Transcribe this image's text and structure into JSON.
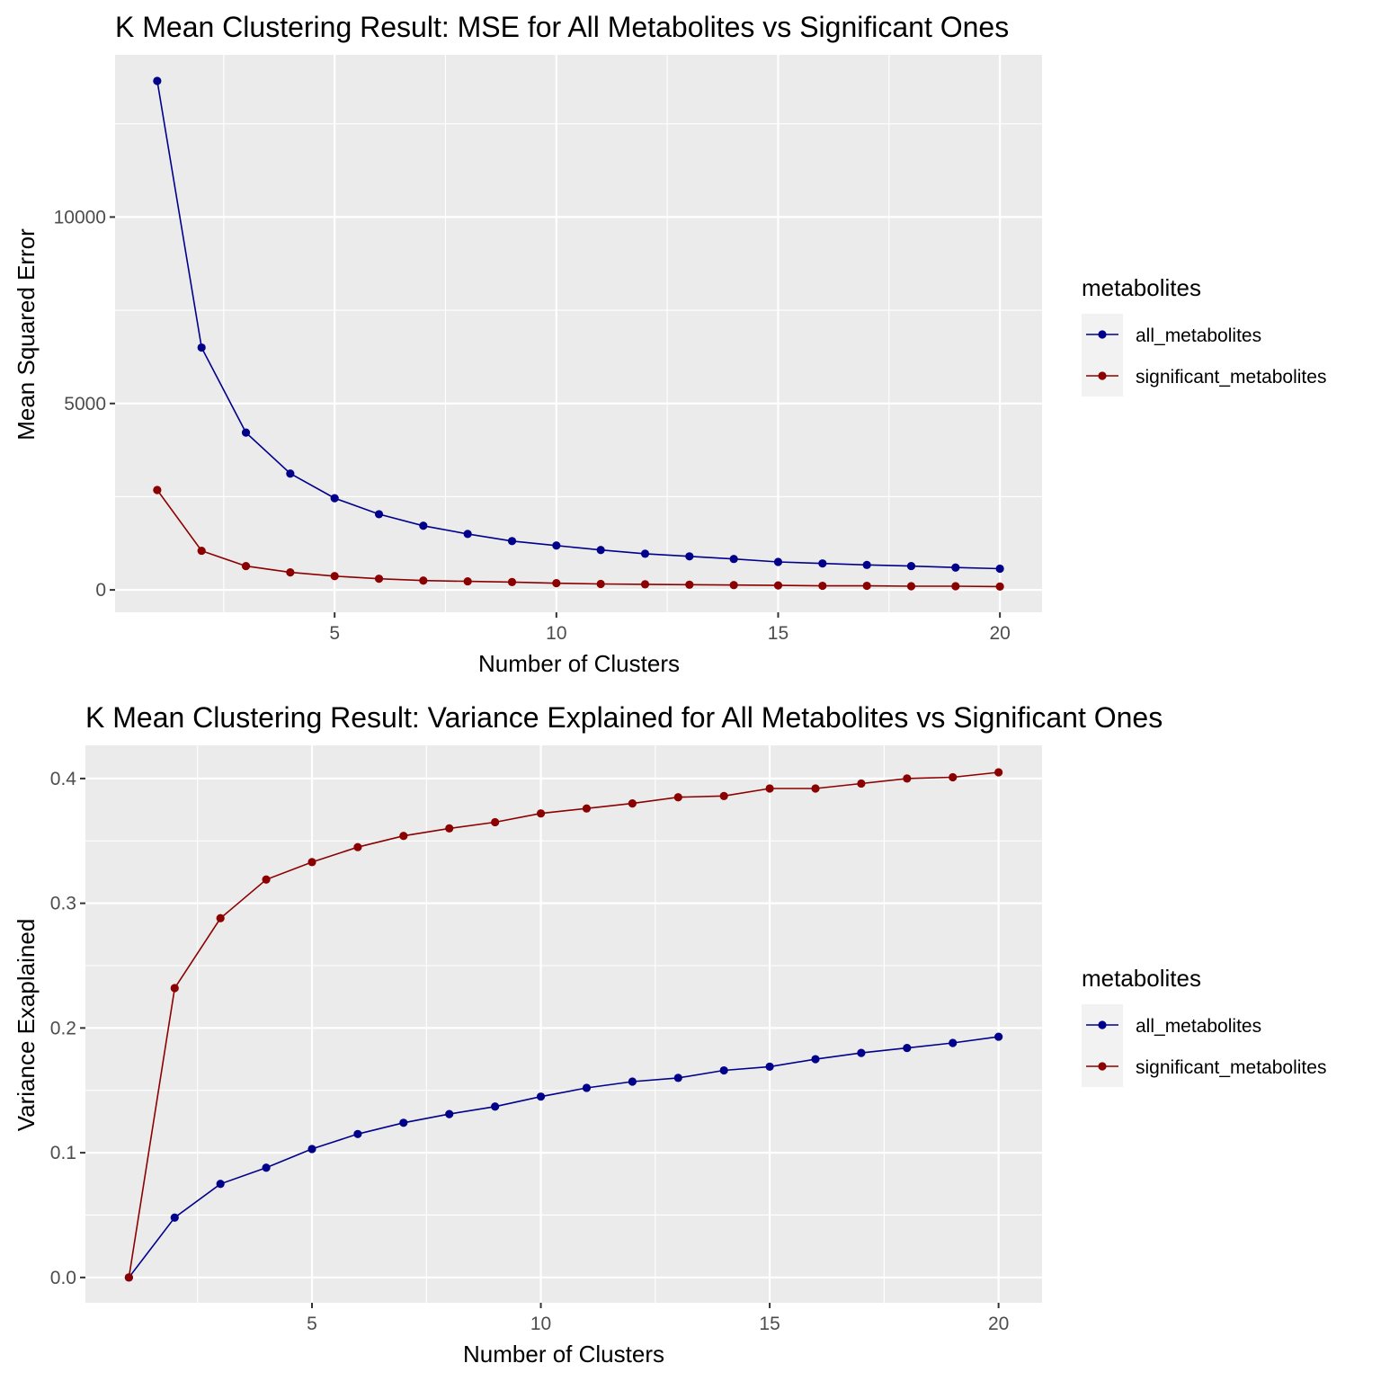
{
  "chart_data": [
    {
      "type": "line",
      "title": "K Mean Clustering Result: MSE for All Metabolites vs Significant Ones",
      "xlabel": "Number of Clusters",
      "ylabel": "Mean Squared Error",
      "xlim": [
        0.05,
        20.95
      ],
      "ylim": [
        -600,
        14350
      ],
      "x_ticks": [
        5,
        10,
        15,
        20
      ],
      "y_ticks": [
        0,
        5000,
        10000
      ],
      "grid": true,
      "legend_title": "metabolites",
      "legend_position": "right",
      "x": [
        1,
        2,
        3,
        4,
        5,
        6,
        7,
        8,
        9,
        10,
        11,
        12,
        13,
        14,
        15,
        16,
        17,
        18,
        19,
        20
      ],
      "series": [
        {
          "name": "all_metabolites",
          "color": "#00008B",
          "values": [
            13650,
            6500,
            4220,
            3120,
            2460,
            2030,
            1720,
            1500,
            1310,
            1190,
            1070,
            970,
            900,
            830,
            750,
            710,
            670,
            640,
            600,
            570
          ]
        },
        {
          "name": "significant_metabolites",
          "color": "#8B0000",
          "values": [
            2680,
            1050,
            640,
            470,
            370,
            300,
            250,
            230,
            210,
            180,
            160,
            150,
            140,
            130,
            120,
            110,
            110,
            100,
            100,
            90
          ]
        }
      ]
    },
    {
      "type": "line",
      "title": "K Mean Clustering Result: Variance Explained for All Metabolites vs Significant Ones",
      "xlabel": "Number of Clusters",
      "ylabel": "Variance Exaplained",
      "xlim": [
        0.05,
        20.95
      ],
      "ylim": [
        -0.0203,
        0.4266
      ],
      "x_ticks": [
        5,
        10,
        15,
        20
      ],
      "y_ticks": [
        0.0,
        0.1,
        0.2,
        0.3,
        0.4
      ],
      "y_tick_labels": [
        "0.0",
        "0.1",
        "0.2",
        "0.3",
        "0.4"
      ],
      "grid": true,
      "legend_title": "metabolites",
      "legend_position": "right",
      "x": [
        1,
        2,
        3,
        4,
        5,
        6,
        7,
        8,
        9,
        10,
        11,
        12,
        13,
        14,
        15,
        16,
        17,
        18,
        19,
        20
      ],
      "series": [
        {
          "name": "all_metabolites",
          "color": "#00008B",
          "values": [
            0.0,
            0.048,
            0.075,
            0.088,
            0.103,
            0.115,
            0.124,
            0.131,
            0.137,
            0.145,
            0.152,
            0.157,
            0.16,
            0.166,
            0.169,
            0.175,
            0.18,
            0.184,
            0.188,
            0.193
          ]
        },
        {
          "name": "significant_metabolites",
          "color": "#8B0000",
          "values": [
            0.0,
            0.232,
            0.288,
            0.319,
            0.333,
            0.345,
            0.354,
            0.36,
            0.365,
            0.372,
            0.376,
            0.38,
            0.385,
            0.386,
            0.392,
            0.392,
            0.396,
            0.4,
            0.401,
            0.405
          ]
        }
      ]
    }
  ]
}
